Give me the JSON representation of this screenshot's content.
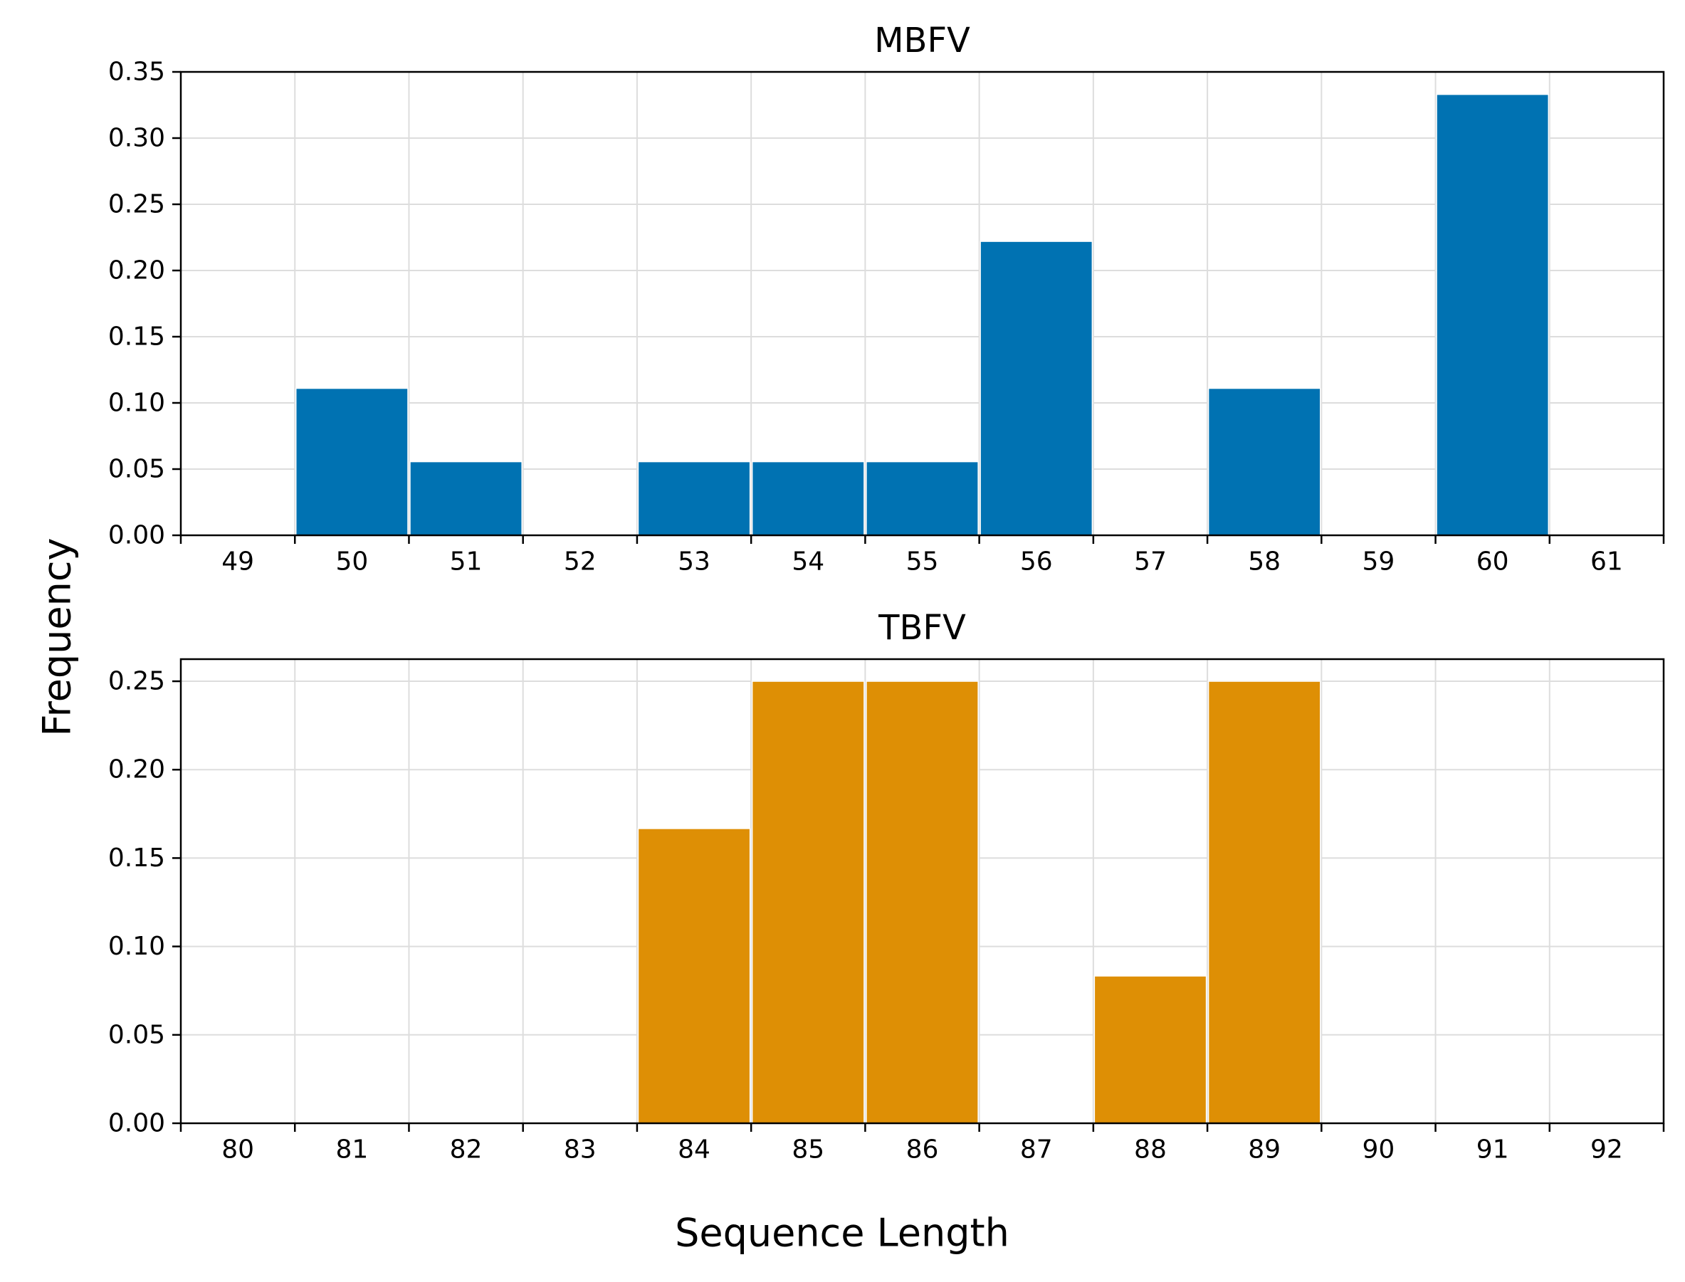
{
  "figure": {
    "ylabel": "Frequency",
    "xlabel": "Sequence Length"
  },
  "chart_data": [
    {
      "type": "bar",
      "title": "MBFV",
      "color": "#0072b2",
      "categories": [
        "49",
        "50",
        "51",
        "52",
        "53",
        "54",
        "55",
        "56",
        "57",
        "58",
        "59",
        "60",
        "61"
      ],
      "values": [
        0,
        0.111,
        0.0556,
        0,
        0.0556,
        0.0556,
        0.0556,
        0.222,
        0,
        0.111,
        0,
        0.333,
        0
      ],
      "ylim": [
        0,
        0.35
      ],
      "yticks": [
        "0.00",
        "0.05",
        "0.10",
        "0.15",
        "0.20",
        "0.25",
        "0.30",
        "0.35"
      ],
      "grid": true
    },
    {
      "type": "bar",
      "title": "TBFV",
      "color": "#de8f05",
      "categories": [
        "80",
        "81",
        "82",
        "83",
        "84",
        "85",
        "86",
        "87",
        "88",
        "89",
        "90",
        "91",
        "92"
      ],
      "values": [
        0,
        0,
        0,
        0,
        0.1667,
        0.25,
        0.25,
        0,
        0.0833,
        0.25,
        0,
        0,
        0
      ],
      "ylim": [
        0,
        0.2625
      ],
      "yticks": [
        "0.00",
        "0.05",
        "0.10",
        "0.15",
        "0.20",
        "0.25"
      ],
      "grid": true
    }
  ]
}
